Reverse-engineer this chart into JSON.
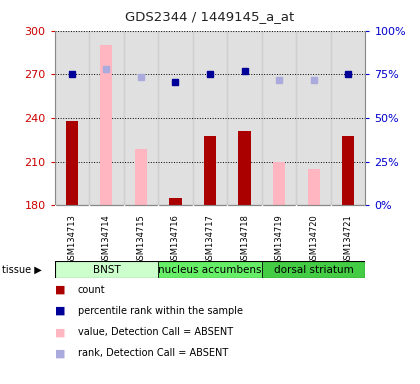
{
  "title": "GDS2344 / 1449145_a_at",
  "samples": [
    "GSM134713",
    "GSM134714",
    "GSM134715",
    "GSM134716",
    "GSM134717",
    "GSM134718",
    "GSM134719",
    "GSM134720",
    "GSM134721"
  ],
  "count_values": [
    238,
    null,
    null,
    185,
    228,
    231,
    null,
    null,
    228
  ],
  "absent_bar_values": [
    null,
    290,
    219,
    null,
    null,
    null,
    210,
    205,
    null
  ],
  "rank_present": [
    270,
    null,
    null,
    265,
    270,
    272,
    null,
    null,
    270
  ],
  "rank_absent": [
    null,
    274,
    268,
    null,
    null,
    null,
    266,
    266,
    null
  ],
  "ymin": 180,
  "ymax": 300,
  "yticks": [
    180,
    210,
    240,
    270,
    300
  ],
  "tissues": [
    {
      "label": "BNST",
      "start": 0,
      "end": 3
    },
    {
      "label": "nucleus accumbens",
      "start": 3,
      "end": 6
    },
    {
      "label": "dorsal striatum",
      "start": 6,
      "end": 9
    }
  ],
  "tissue_colors": [
    "#ccffcc",
    "#66ee66",
    "#44cc44"
  ],
  "bar_width": 0.35,
  "count_color": "#aa0000",
  "absent_bar_color": "#ffb6c1",
  "rank_present_color": "#000099",
  "rank_absent_color": "#aaaadd",
  "bg_color": "#ffffff",
  "tick_color_left": "#cc0000",
  "tick_color_right": "#0000cc",
  "legend_items": [
    {
      "color": "#aa0000",
      "label": "count"
    },
    {
      "color": "#000099",
      "label": "percentile rank within the sample"
    },
    {
      "color": "#ffb6c1",
      "label": "value, Detection Call = ABSENT"
    },
    {
      "color": "#aaaadd",
      "label": "rank, Detection Call = ABSENT"
    }
  ]
}
